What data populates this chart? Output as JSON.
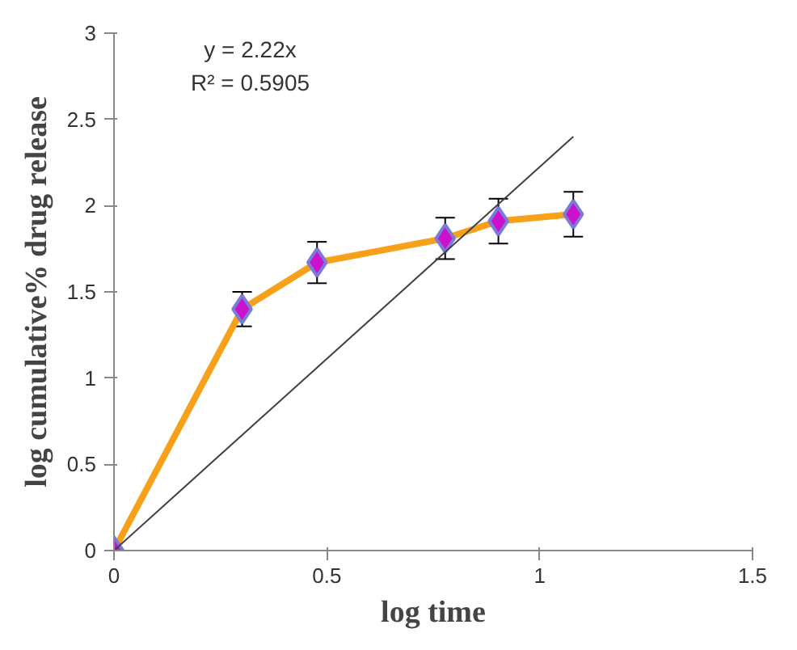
{
  "chart_data": {
    "type": "line",
    "xlabel": "log time",
    "ylabel": "log cumulative% drug release",
    "xlim": [
      0,
      1.5
    ],
    "ylim": [
      0,
      3
    ],
    "xticks": [
      0,
      0.5,
      1,
      1.5
    ],
    "yticks": [
      0,
      0.5,
      1,
      1.5,
      2,
      2.5,
      3
    ],
    "grid": false,
    "annotations": [
      "y = 2.22x",
      "R² = 0.5905"
    ],
    "series": [
      {
        "color": "#f7a11a",
        "marker": "diamond",
        "x": [
          0,
          0.301,
          0.477,
          0.778,
          0.903,
          1.079
        ],
        "values": [
          0,
          1.4,
          1.67,
          1.81,
          1.91,
          1.95
        ],
        "errors": [
          null,
          0.1,
          0.12,
          0.12,
          0.13,
          0.13
        ]
      },
      {
        "color": "#404040",
        "marker": "none",
        "x": [
          0,
          1.079
        ],
        "values": [
          0,
          2.4
        ]
      }
    ]
  }
}
